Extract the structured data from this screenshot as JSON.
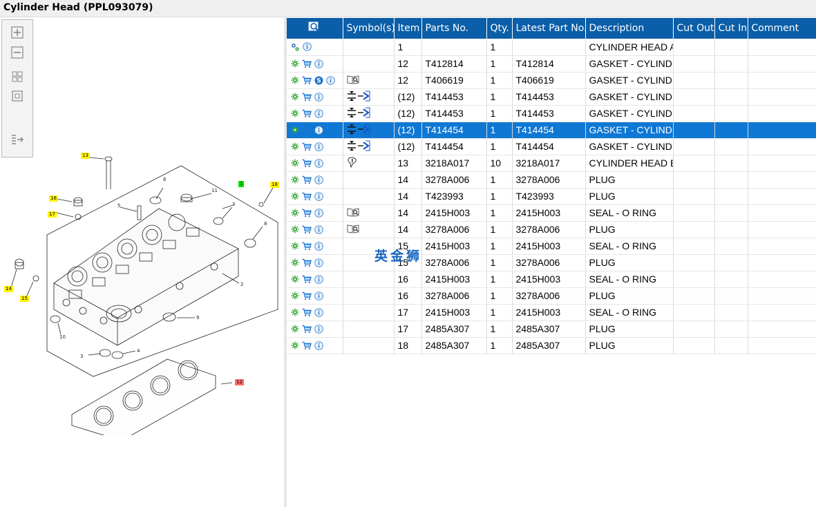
{
  "window": {
    "title": "Cylinder Head (PPL093079)"
  },
  "toolbar": {
    "buttons": [
      "zoom-in",
      "zoom-out",
      "fit-page",
      "actual-size",
      "export"
    ]
  },
  "diagram": {
    "callouts": [
      {
        "label": "13",
        "kind": "yellow"
      },
      {
        "label": "1",
        "kind": "green"
      },
      {
        "label": "18",
        "kind": "yellow"
      },
      {
        "label": "16",
        "kind": "yellow"
      },
      {
        "label": "17",
        "kind": "yellow"
      },
      {
        "label": "14",
        "kind": "yellow"
      },
      {
        "label": "15",
        "kind": "yellow"
      },
      {
        "label": "12",
        "kind": "red"
      }
    ],
    "part_numbers": [
      "6",
      "11",
      "5",
      "7",
      "8",
      "2",
      "9",
      "10",
      "3",
      "4"
    ]
  },
  "grid": {
    "header": {
      "search_icon": "search-icon",
      "symbols": "Symbol(s)",
      "item": "Item",
      "parts_no": "Parts No.",
      "qty": "Qty.",
      "latest_part_no": "Latest Part No.",
      "description": "Description",
      "cut_out": "Cut Out",
      "cut_in": "Cut In",
      "comment": "Comment"
    },
    "rows": [
      {
        "icons": [
          "gears",
          "info"
        ],
        "symbols": [],
        "item": "1",
        "parts_no": "",
        "qty": "1",
        "latest": "",
        "desc": "CYLINDER HEAD A",
        "selected": false
      },
      {
        "icons": [
          "gear",
          "cart",
          "info"
        ],
        "symbols": [],
        "item": "12",
        "parts_no": "T412814",
        "qty": "1",
        "latest": "T412814",
        "desc": "GASKET - CYLINDE",
        "selected": false
      },
      {
        "icons": [
          "gear",
          "cart",
          "s",
          "info"
        ],
        "symbols": [
          "book"
        ],
        "item": "12",
        "parts_no": "T406619",
        "qty": "1",
        "latest": "T406619",
        "desc": "GASKET - CYLINDE",
        "selected": false
      },
      {
        "icons": [
          "gear",
          "cart",
          "info"
        ],
        "symbols": [
          "press"
        ],
        "item": "(12)",
        "parts_no": "T414453",
        "qty": "1",
        "latest": "T414453",
        "desc": "GASKET - CYLINDE",
        "selected": false
      },
      {
        "icons": [
          "gear",
          "cart",
          "info"
        ],
        "symbols": [
          "press"
        ],
        "item": "(12)",
        "parts_no": "T414453",
        "qty": "1",
        "latest": "T414453",
        "desc": "GASKET - CYLINDE",
        "selected": false
      },
      {
        "icons": [
          "gear",
          "cart",
          "info"
        ],
        "symbols": [
          "press"
        ],
        "item": "(12)",
        "parts_no": "T414454",
        "qty": "1",
        "latest": "T414454",
        "desc": "GASKET - CYLINDE",
        "selected": true
      },
      {
        "icons": [
          "gear",
          "cart",
          "info"
        ],
        "symbols": [
          "press"
        ],
        "item": "(12)",
        "parts_no": "T414454",
        "qty": "1",
        "latest": "T414454",
        "desc": "GASKET - CYLINDE",
        "selected": false
      },
      {
        "icons": [
          "gear",
          "cart",
          "info"
        ],
        "symbols": [
          "pin"
        ],
        "item": "13",
        "parts_no": "3218A017",
        "qty": "10",
        "latest": "3218A017",
        "desc": "CYLINDER HEAD B",
        "selected": false
      },
      {
        "icons": [
          "gear",
          "cart",
          "info"
        ],
        "symbols": [],
        "item": "14",
        "parts_no": "3278A006",
        "qty": "1",
        "latest": "3278A006",
        "desc": "PLUG",
        "selected": false
      },
      {
        "icons": [
          "gear",
          "cart",
          "info"
        ],
        "symbols": [],
        "item": "14",
        "parts_no": "T423993",
        "qty": "1",
        "latest": "T423993",
        "desc": "PLUG",
        "selected": false
      },
      {
        "icons": [
          "gear",
          "cart",
          "info"
        ],
        "symbols": [
          "book"
        ],
        "item": "14",
        "parts_no": "2415H003",
        "qty": "1",
        "latest": "2415H003",
        "desc": "SEAL - O RING",
        "selected": false
      },
      {
        "icons": [
          "gear",
          "cart",
          "info"
        ],
        "symbols": [
          "book"
        ],
        "item": "14",
        "parts_no": "3278A006",
        "qty": "1",
        "latest": "3278A006",
        "desc": "PLUG",
        "selected": false
      },
      {
        "icons": [
          "gear",
          "cart",
          "info"
        ],
        "symbols": [],
        "item": "15",
        "parts_no": "2415H003",
        "qty": "1",
        "latest": "2415H003",
        "desc": "SEAL - O RING",
        "selected": false
      },
      {
        "icons": [
          "gear",
          "cart",
          "info"
        ],
        "symbols": [],
        "item": "15",
        "parts_no": "3278A006",
        "qty": "1",
        "latest": "3278A006",
        "desc": "PLUG",
        "selected": false
      },
      {
        "icons": [
          "gear",
          "cart",
          "info"
        ],
        "symbols": [],
        "item": "16",
        "parts_no": "2415H003",
        "qty": "1",
        "latest": "2415H003",
        "desc": "SEAL - O RING",
        "selected": false
      },
      {
        "icons": [
          "gear",
          "cart",
          "info"
        ],
        "symbols": [],
        "item": "16",
        "parts_no": "3278A006",
        "qty": "1",
        "latest": "3278A006",
        "desc": "PLUG",
        "selected": false
      },
      {
        "icons": [
          "gear",
          "cart",
          "info"
        ],
        "symbols": [],
        "item": "17",
        "parts_no": "2415H003",
        "qty": "1",
        "latest": "2415H003",
        "desc": "SEAL - O RING",
        "selected": false
      },
      {
        "icons": [
          "gear",
          "cart",
          "info"
        ],
        "symbols": [],
        "item": "17",
        "parts_no": "2485A307",
        "qty": "1",
        "latest": "2485A307",
        "desc": "PLUG",
        "selected": false
      },
      {
        "icons": [
          "gear",
          "cart",
          "info"
        ],
        "symbols": [],
        "item": "18",
        "parts_no": "2485A307",
        "qty": "1",
        "latest": "2485A307",
        "desc": "PLUG",
        "selected": false
      }
    ]
  },
  "watermark": "英金狮",
  "colors": {
    "header_bg": "#0b5ea8",
    "selected_row": "#0f78d4",
    "gear": "#3aa83a",
    "cart": "#1976d2",
    "info": "#4a90d9"
  }
}
